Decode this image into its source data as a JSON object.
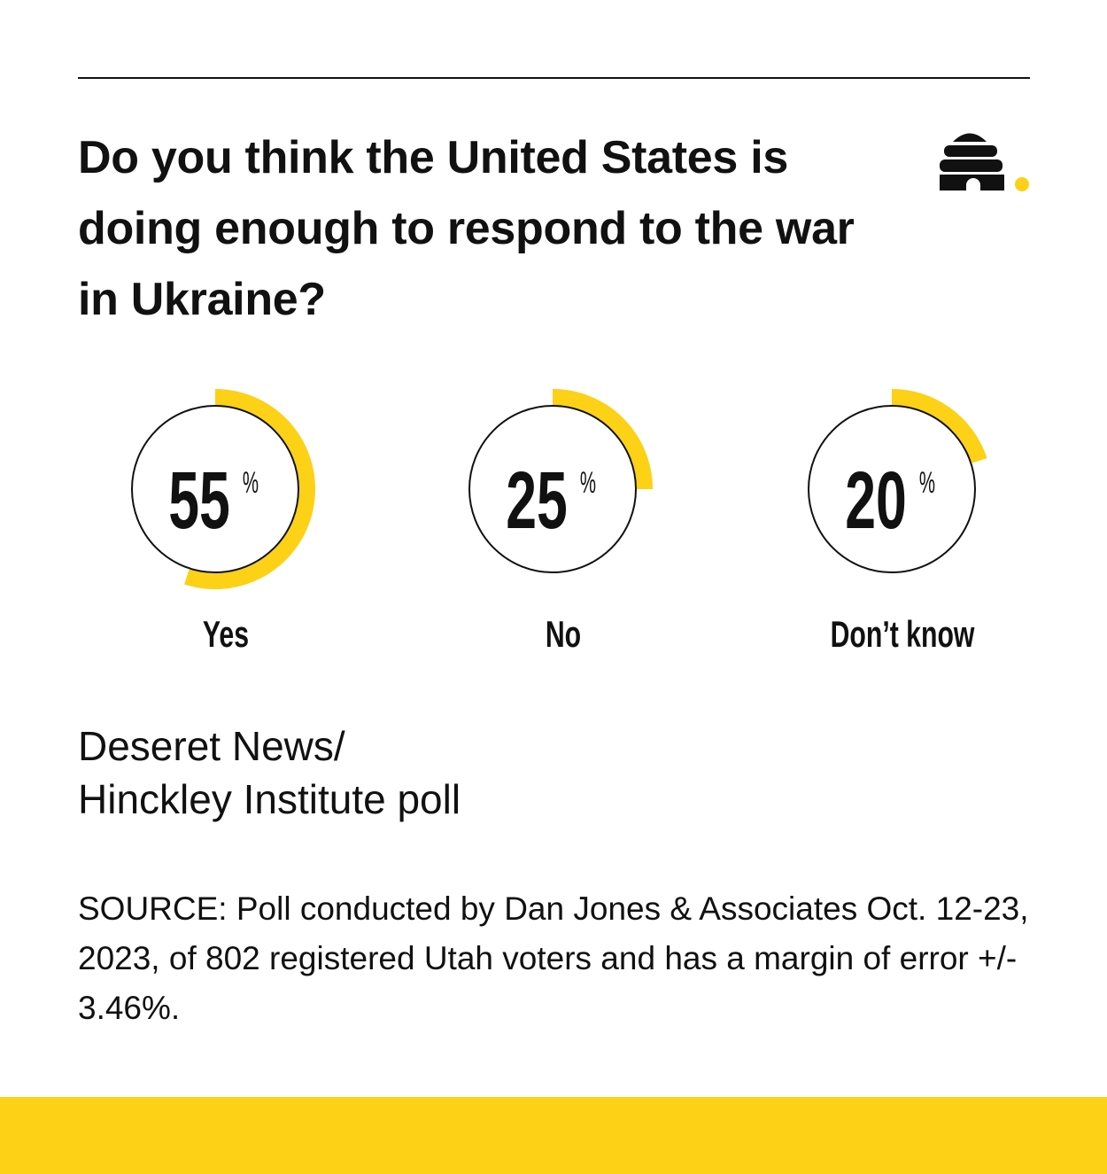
{
  "title": "Do you think the United States is doing enough to respond to the war in Ukraine?",
  "colors": {
    "accent": "#fcd116",
    "ink": "#111111"
  },
  "logo": "beehive-icon",
  "chart_data": {
    "type": "radial-gauge",
    "unit": "%",
    "categories": [
      "Yes",
      "No",
      "Don’t know"
    ],
    "values": [
      55,
      25,
      20
    ],
    "range": [
      0,
      100
    ]
  },
  "poll_name": [
    "Deseret News/",
    "Hinckley Institute poll"
  ],
  "source": "SOURCE: Poll conducted by Dan Jones & Associates Oct. 12-23, 2023, of 802 registered Utah voters and has a margin of error +/- 3.46%."
}
